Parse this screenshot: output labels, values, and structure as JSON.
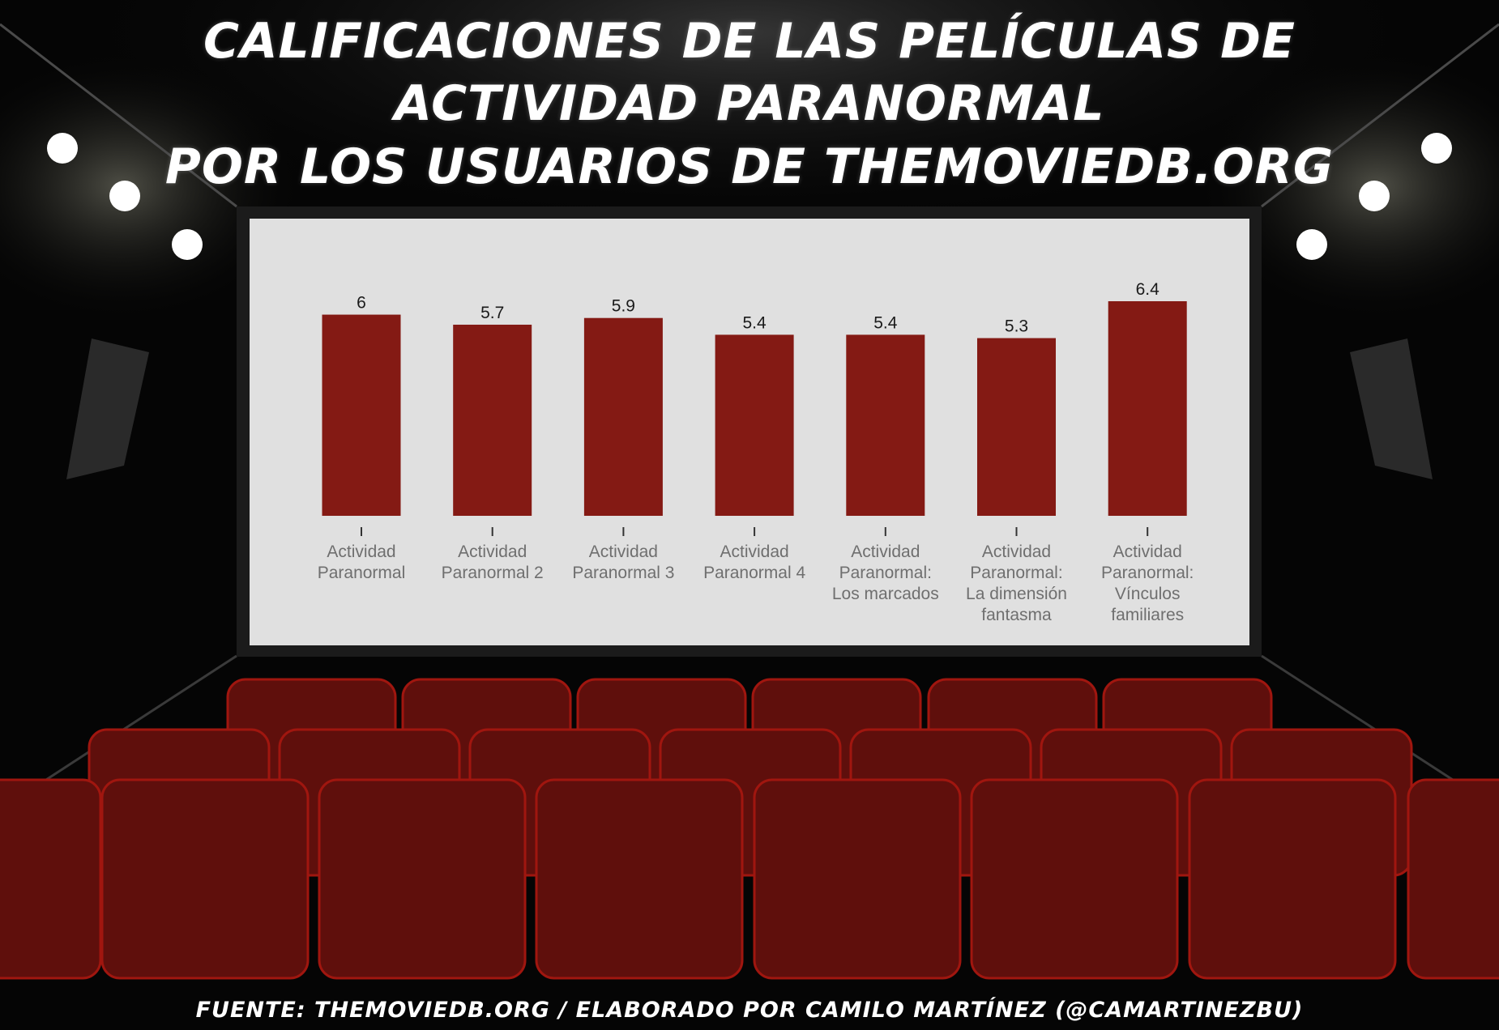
{
  "header": {
    "title_line1": "Calificaciones de las películas de",
    "title_line2": "Actividad Paranormal",
    "title_line3": "por los usuarios de Themoviedb.org"
  },
  "footer": {
    "source": "Fuente: Themoviedb.org / Elaborado por Camilo Martínez (@camartinezbu)"
  },
  "colors": {
    "bar": "#841a14",
    "screen": "#e0e0e0",
    "seat": "#5f0f0c",
    "seat_edge": "#a0160f"
  },
  "chart_data": {
    "type": "bar",
    "title": "Calificaciones de las películas de Actividad Paranormal por los usuarios de Themoviedb.org",
    "categories": [
      [
        "Actividad",
        "Paranormal"
      ],
      [
        "Actividad",
        "Paranormal 2"
      ],
      [
        "Actividad",
        "Paranormal 3"
      ],
      [
        "Actividad",
        "Paranormal 4"
      ],
      [
        "Actividad",
        "Paranormal:",
        "Los marcados"
      ],
      [
        "Actividad",
        "Paranormal:",
        "La dimensión",
        "fantasma"
      ],
      [
        "Actividad",
        "Paranormal:",
        "Vínculos",
        "familiares"
      ]
    ],
    "values": [
      6,
      5.7,
      5.9,
      5.4,
      5.4,
      5.3,
      6.4
    ],
    "value_labels": [
      "6",
      "5.7",
      "5.9",
      "5.4",
      "5.4",
      "5.3",
      "6.4"
    ],
    "xlabel": "",
    "ylabel": "",
    "ylim": [
      0,
      6.4
    ],
    "grid": false,
    "legend": "none"
  }
}
